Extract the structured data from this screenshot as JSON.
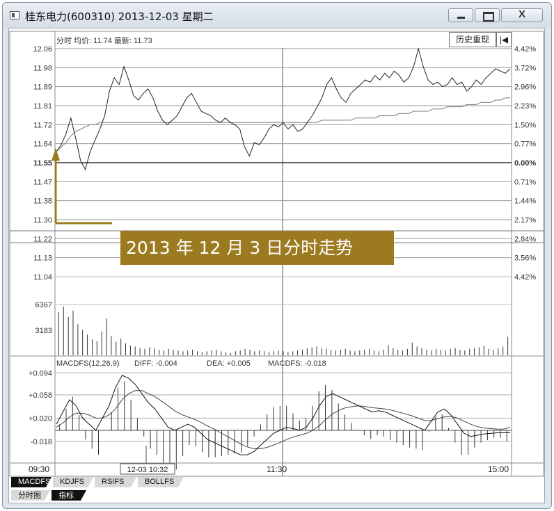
{
  "window": {
    "title": "桂东电力(600310) 2013-12-03 星期二",
    "close_glyph": "X"
  },
  "toolbar": {
    "history_label": "历史重现",
    "back_glyph": "|◀"
  },
  "header": {
    "label": "分时 均价: 11.74 最新: 11.73"
  },
  "macd_header": {
    "label": "MACDFS(12,26,9)",
    "diff": "DIFF: -0.004",
    "dea": "DEA: +0.005",
    "macd": "MACDFS: -0.018"
  },
  "price_axis": {
    "left_labels": [
      "12.06",
      "11.98",
      "11.89",
      "11.81",
      "11.72",
      "11.64",
      "11.55",
      "11.47",
      "11.38",
      "11.30",
      "11.22",
      "11.13",
      "11.04"
    ],
    "right_labels": [
      "4.42%",
      "3.72%",
      "2.96%",
      "2.23%",
      "1.50%",
      "0.77%",
      "0.00%",
      "0.71%",
      "1.44%",
      "2.17%",
      "2.84%",
      "3.56%",
      "4.42%"
    ],
    "base_price": "11.55"
  },
  "volume_axis": {
    "labels": [
      "6367",
      "3183"
    ]
  },
  "macd_axis": {
    "labels": [
      "+0.094",
      "+0.058",
      "+0.020",
      "-0.018"
    ]
  },
  "time_axis": {
    "start": "09:30",
    "mid": "11:30",
    "end": "15:00",
    "cursor_label": "12-03 10:32"
  },
  "callout": {
    "text": "2013 年 12 月 3 日分时走势"
  },
  "tabs": [
    "MACDFS",
    "KDJFS",
    "RSIFS",
    "BOLLFS"
  ],
  "subtabs": [
    "分时图",
    "指标"
  ],
  "chart_data": {
    "type": "line",
    "price_series": [
      11.6,
      11.63,
      11.68,
      11.75,
      11.66,
      11.56,
      11.52,
      11.6,
      11.65,
      11.7,
      11.76,
      11.87,
      11.93,
      11.9,
      11.98,
      11.92,
      11.85,
      11.83,
      11.86,
      11.88,
      11.84,
      11.78,
      11.74,
      11.72,
      11.74,
      11.76,
      11.8,
      11.84,
      11.86,
      11.82,
      11.78,
      11.77,
      11.76,
      11.74,
      11.73,
      11.75,
      11.73,
      11.72,
      11.7,
      11.62,
      11.58,
      11.64,
      11.63,
      11.66,
      11.7,
      11.72,
      11.71,
      11.73,
      11.7,
      11.72,
      11.69,
      11.7,
      11.73,
      11.76,
      11.8,
      11.84,
      11.9,
      11.93,
      11.88,
      11.84,
      11.82,
      11.86,
      11.88,
      11.9,
      11.92,
      11.91,
      11.94,
      11.92,
      11.95,
      11.93,
      11.96,
      11.94,
      11.91,
      11.93,
      11.98,
      12.06,
      11.98,
      11.92,
      11.9,
      11.91,
      11.89,
      11.9,
      11.93,
      11.9,
      11.91,
      11.87,
      11.89,
      11.92,
      11.9,
      11.93,
      11.95,
      11.97,
      11.96,
      11.95,
      11.97
    ],
    "avg_series": [
      11.6,
      11.62,
      11.64,
      11.67,
      11.69,
      11.7,
      11.71,
      11.72,
      11.72,
      11.73,
      11.73,
      11.73,
      11.73,
      11.73,
      11.73,
      11.73,
      11.73,
      11.73,
      11.73,
      11.73,
      11.73,
      11.73,
      11.73,
      11.73,
      11.73,
      11.73,
      11.73,
      11.73,
      11.73,
      11.73,
      11.73,
      11.73,
      11.73,
      11.73,
      11.73,
      11.73,
      11.73,
      11.73,
      11.73,
      11.73,
      11.73,
      11.73,
      11.73,
      11.73,
      11.73,
      11.73,
      11.73,
      11.73,
      11.73,
      11.73,
      11.73,
      11.73,
      11.73,
      11.73,
      11.73,
      11.74,
      11.74,
      11.74,
      11.74,
      11.74,
      11.74,
      11.74,
      11.75,
      11.75,
      11.75,
      11.75,
      11.75,
      11.76,
      11.76,
      11.76,
      11.76,
      11.77,
      11.77,
      11.77,
      11.78,
      11.78,
      11.78,
      11.78,
      11.79,
      11.79,
      11.79,
      11.8,
      11.8,
      11.8,
      11.8,
      11.81,
      11.81,
      11.81,
      11.82,
      11.82,
      11.82,
      11.83,
      11.83,
      11.84,
      11.84
    ],
    "volume_series": [
      5400,
      6100,
      4800,
      5600,
      3900,
      3200,
      2600,
      2000,
      1800,
      3000,
      4600,
      2400,
      1700,
      2100,
      1500,
      1200,
      1100,
      900,
      800,
      1000,
      900,
      700,
      600,
      800,
      700,
      600,
      500,
      600,
      700,
      500,
      400,
      500,
      600,
      700,
      500,
      400,
      300,
      500,
      600,
      800,
      700,
      500,
      600,
      500,
      400,
      500,
      600,
      500,
      400,
      500,
      600,
      700,
      900,
      1000,
      1100,
      900,
      800,
      700,
      600,
      700,
      800,
      600,
      500,
      600,
      700,
      800,
      600,
      500,
      700,
      1300,
      900,
      700,
      600,
      800,
      1600,
      1100,
      900,
      700,
      600,
      800,
      700,
      600,
      800,
      900,
      700,
      600,
      800,
      900,
      1000,
      1200,
      800,
      700,
      900,
      1100,
      2300
    ],
    "diff_series": [
      0.01,
      0.03,
      0.05,
      0.04,
      0.02,
      0.01,
      0.0,
      0.02,
      0.04,
      0.07,
      0.09,
      0.085,
      0.075,
      0.06,
      0.045,
      0.035,
      0.02,
      0.005,
      0.0,
      0.005,
      0.01,
      0.005,
      -0.005,
      -0.015,
      -0.02,
      -0.025,
      -0.03,
      -0.035,
      -0.04,
      -0.04,
      -0.035,
      -0.025,
      -0.015,
      -0.005,
      0.0,
      0.005,
      0.003,
      0.0,
      0.005,
      0.02,
      0.04,
      0.055,
      0.06,
      0.055,
      0.05,
      0.045,
      0.04,
      0.035,
      0.03,
      0.032,
      0.03,
      0.025,
      0.02,
      0.015,
      0.01,
      0.005,
      0.0,
      0.015,
      0.03,
      0.035,
      0.025,
      0.01,
      -0.005,
      -0.01,
      -0.008,
      -0.006,
      -0.005,
      -0.004,
      -0.004,
      -0.004
    ],
    "dea_series": [
      0.005,
      0.012,
      0.022,
      0.028,
      0.028,
      0.025,
      0.02,
      0.02,
      0.025,
      0.035,
      0.05,
      0.06,
      0.065,
      0.065,
      0.06,
      0.055,
      0.048,
      0.04,
      0.032,
      0.026,
      0.022,
      0.018,
      0.013,
      0.007,
      0.002,
      -0.004,
      -0.01,
      -0.016,
      -0.022,
      -0.027,
      -0.03,
      -0.03,
      -0.028,
      -0.024,
      -0.02,
      -0.015,
      -0.011,
      -0.008,
      -0.005,
      0.0,
      0.008,
      0.018,
      0.027,
      0.033,
      0.037,
      0.039,
      0.04,
      0.039,
      0.037,
      0.036,
      0.035,
      0.033,
      0.03,
      0.027,
      0.024,
      0.02,
      0.016,
      0.016,
      0.019,
      0.022,
      0.023,
      0.02,
      0.015,
      0.01,
      0.006,
      0.004,
      0.003,
      0.002,
      0.002,
      0.005
    ],
    "macd_series": [
      0.01,
      0.035,
      0.055,
      0.025,
      -0.015,
      -0.03,
      -0.04,
      0.0,
      0.03,
      0.07,
      0.08,
      0.05,
      0.02,
      -0.01,
      -0.03,
      -0.04,
      -0.056,
      -0.07,
      -0.064,
      -0.042,
      -0.024,
      -0.026,
      -0.036,
      -0.044,
      -0.044,
      -0.042,
      -0.04,
      -0.038,
      -0.036,
      -0.026,
      -0.01,
      0.01,
      0.026,
      0.038,
      0.04,
      0.04,
      0.028,
      0.016,
      0.02,
      0.04,
      0.064,
      0.074,
      0.066,
      0.044,
      0.026,
      0.012,
      0.0,
      -0.008,
      -0.014,
      -0.008,
      -0.01,
      -0.016,
      -0.02,
      -0.024,
      -0.028,
      -0.03,
      -0.032,
      -0.002,
      0.022,
      0.026,
      0.004,
      -0.02,
      -0.04,
      -0.04,
      -0.028,
      -0.02,
      -0.016,
      -0.012,
      -0.012,
      -0.018
    ],
    "price_range": [
      11.04,
      12.06
    ],
    "volume_range": [
      0,
      6367
    ],
    "macd_range": [
      -0.05,
      0.1
    ]
  }
}
